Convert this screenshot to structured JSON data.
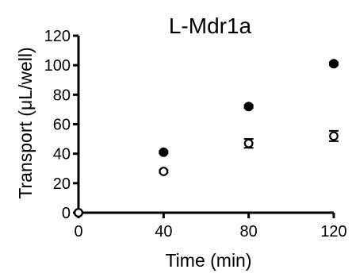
{
  "chart_data": {
    "type": "scatter",
    "title": "L-Mdr1a",
    "xlabel": "Time (min)",
    "ylabel": "Transport (μL/well)",
    "xlim": [
      0,
      120
    ],
    "ylim": [
      0,
      120
    ],
    "xticks": [
      0,
      40,
      80,
      120
    ],
    "yticks": [
      0,
      20,
      40,
      60,
      80,
      100,
      120
    ],
    "grid": false,
    "legend": "none",
    "series": [
      {
        "marker": "filled-circle",
        "points": [
          {
            "x": 0,
            "y": 0,
            "err": 0
          },
          {
            "x": 40,
            "y": 41,
            "err": 0.8
          },
          {
            "x": 80,
            "y": 72,
            "err": 1.0
          },
          {
            "x": 120,
            "y": 101,
            "err": 1.0
          }
        ]
      },
      {
        "marker": "open-circle",
        "points": [
          {
            "x": 0,
            "y": 0,
            "err": 0
          },
          {
            "x": 40,
            "y": 28,
            "err": 0.8
          },
          {
            "x": 80,
            "y": 47,
            "err": 3.0
          },
          {
            "x": 120,
            "y": 52,
            "err": 3.5
          }
        ]
      }
    ],
    "colors": {
      "marker": "#000000",
      "axis": "#000000",
      "background": "#ffffff"
    }
  }
}
